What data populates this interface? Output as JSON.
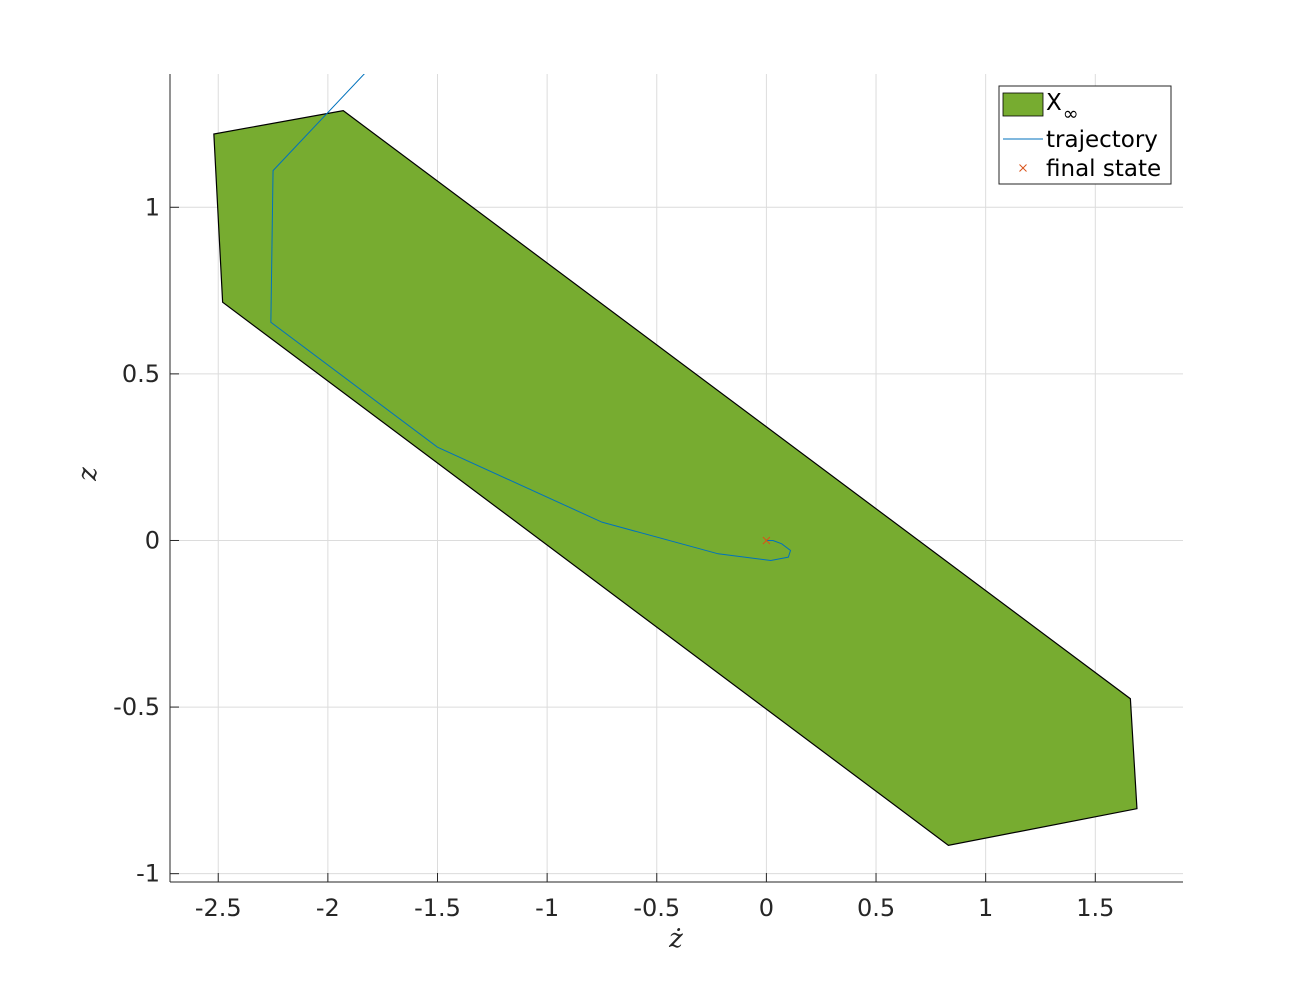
{
  "chart_data": {
    "type": "area",
    "xlabel": "ż",
    "ylabel": "z",
    "xlim": [
      -2.72,
      1.9
    ],
    "ylim": [
      -1.025,
      1.4
    ],
    "xticks": [
      -2.5,
      -2,
      -1.5,
      -1,
      -0.5,
      0,
      0.5,
      1,
      1.5
    ],
    "xtick_labels": [
      "-2.5",
      "-2",
      "-1.5",
      "-1",
      "-0.5",
      "0",
      "0.5",
      "1",
      "1.5"
    ],
    "yticks": [
      -1,
      -0.5,
      0,
      0.5,
      1
    ],
    "ytick_labels": [
      "-1",
      "-0.5",
      "0",
      "0.5",
      "1"
    ],
    "grid": true,
    "legend_position": "top-right",
    "colors": {
      "region_fill": "#77AC30",
      "region_edge": "#000000",
      "trajectory": "#0072BD",
      "final_state": "#D95319",
      "grid": "#dcdcdc",
      "axis": "#262626"
    },
    "series": [
      {
        "name": "X∞",
        "kind": "polygon",
        "x": [
          -1.93,
          1.66,
          1.69,
          0.83,
          -2.48,
          -2.52
        ],
        "y": [
          1.29,
          -0.475,
          -0.805,
          -0.915,
          0.715,
          1.22
        ]
      },
      {
        "name": "trajectory",
        "kind": "line",
        "x": [
          -1.82,
          -2.25,
          -2.26,
          -1.5,
          -0.75,
          -0.22,
          0.02,
          0.1,
          0.11,
          0.07,
          0.03,
          0.0
        ],
        "y": [
          1.41,
          1.11,
          0.655,
          0.28,
          0.055,
          -0.04,
          -0.06,
          -0.05,
          -0.03,
          -0.01,
          0.0,
          0.0
        ]
      },
      {
        "name": "final state",
        "kind": "marker",
        "marker": "x",
        "x": [
          0.0
        ],
        "y": [
          0.0
        ]
      }
    ],
    "legend": [
      {
        "label_main": "X",
        "label_sub": "∞",
        "kind": "patch"
      },
      {
        "label_main": "trajectory",
        "label_sub": "",
        "kind": "line"
      },
      {
        "label_main": "final state",
        "label_sub": "",
        "kind": "marker"
      }
    ]
  }
}
